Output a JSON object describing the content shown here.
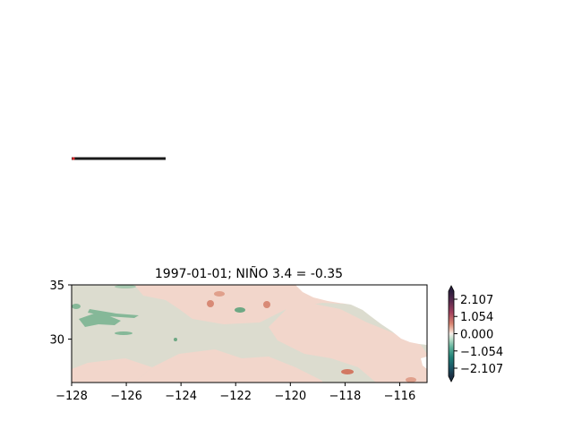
{
  "chart_data": [
    {
      "type": "line",
      "panel": "top",
      "title": "",
      "xlabel": "",
      "ylabel": "",
      "series": [
        {
          "values": [
            0,
            0,
            0,
            0,
            0,
            0,
            0,
            0,
            0,
            0,
            0,
            0,
            0,
            0,
            0,
            0,
            0,
            0,
            0,
            0
          ]
        }
      ],
      "colors": {
        "line": "#1a1a1a",
        "marker": "#d62728"
      }
    },
    {
      "type": "heatmap",
      "panel": "bottom",
      "title": "1997-01-01; NIÑO 3.4 = -0.35",
      "xlabel": "",
      "ylabel": "",
      "xlim": [
        -128,
        -115
      ],
      "ylim": [
        26,
        35
      ],
      "xticks": [
        -128,
        -126,
        -124,
        -122,
        -120,
        -118,
        -116
      ],
      "xtick_labels": [
        "−128",
        "−126",
        "−124",
        "−122",
        "−120",
        "−118",
        "−116"
      ],
      "yticks": [
        30,
        35
      ],
      "ytick_labels": [
        "30",
        "35"
      ],
      "colorbar": {
        "ticks": [
          2.107,
          1.054,
          0.0,
          -1.054,
          -2.107
        ],
        "tick_labels": [
          "2.107",
          "1.054",
          "0.000",
          "−1.054",
          "−2.107"
        ],
        "extend": "both",
        "colors": [
          "#1f2a44",
          "#5b2a4f",
          "#9e3a5c",
          "#d4766b",
          "#eeb9a6",
          "#f3ddd3",
          "#e6eee6",
          "#a6cdb4",
          "#3f9a86",
          "#1c6a6d",
          "#1b3a4a"
        ]
      },
      "colors": {
        "background": "#dcdccf",
        "warm_light": "#f2d6cb",
        "warm_mid": "#e0a08c",
        "warm_strong": "#d27862",
        "cool": "#85b898",
        "land": "#ffffff"
      }
    }
  ]
}
